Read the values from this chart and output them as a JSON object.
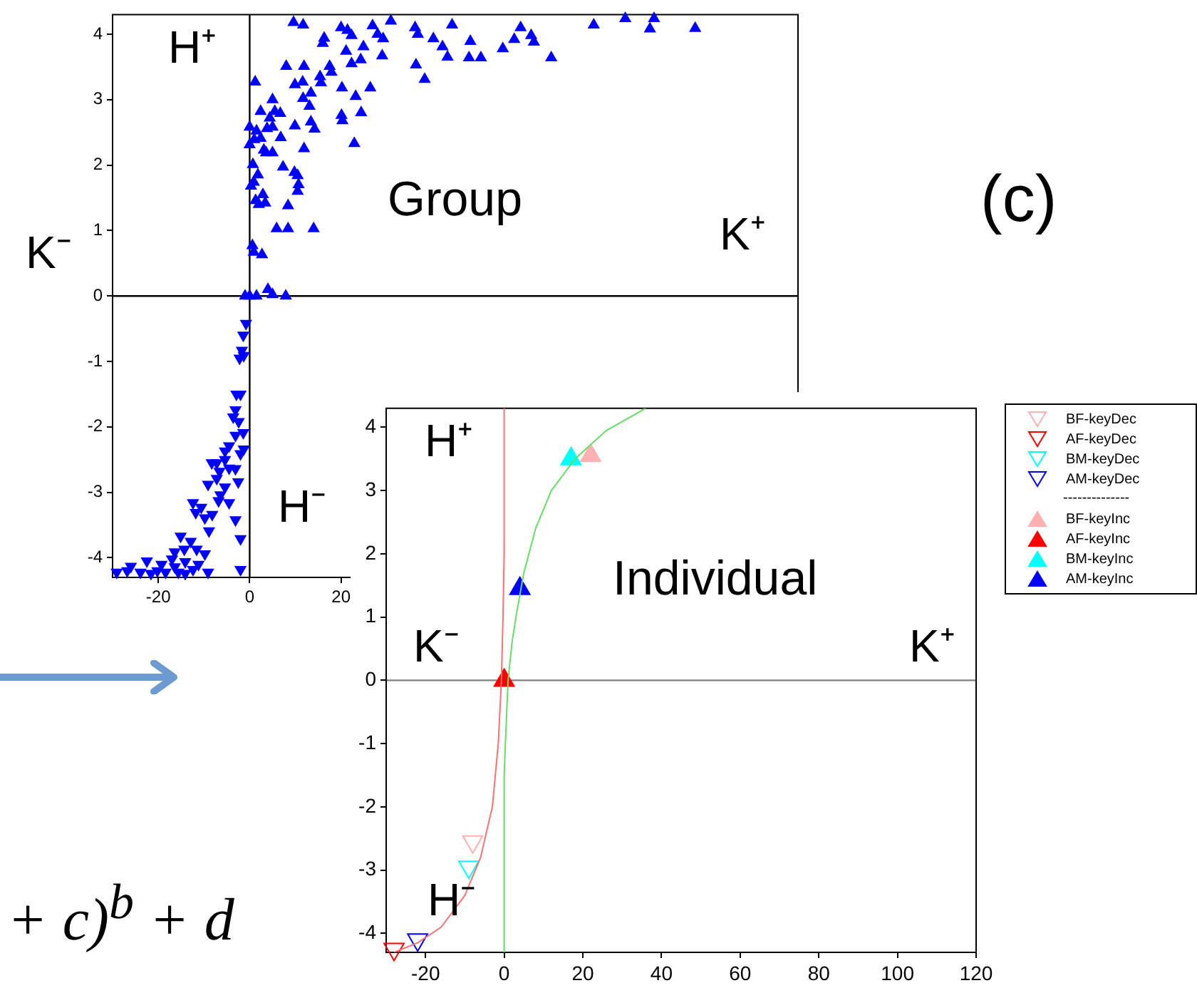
{
  "chart_data": [
    {
      "type": "scatter",
      "xlim": [
        -30,
        120
      ],
      "ylim": [
        -4.3,
        4.3
      ],
      "xticks": [
        -20,
        0,
        20
      ],
      "yticks": [
        -4,
        -3,
        -2,
        -1,
        0,
        1,
        2,
        3,
        4
      ],
      "grid": false,
      "marker": "triangle",
      "series": [
        {
          "color": "#0000ff",
          "x": [
            9.6,
            11.7,
            20,
            21.4,
            22.3,
            26.9,
            30.9,
            36.2,
            36.8,
            44.3,
            48.3,
            59.3,
            61.6,
            75.3,
            82.2,
            87.6,
            88.5,
            97.5,
            16.3,
            16,
            21.1,
            22.3,
            24.3,
            24.9,
            29,
            29.2,
            28,
            40.2,
            42.2,
            43.3,
            48,
            50.6,
            55.4,
            57.9,
            62.2,
            66,
            36.4,
            38.3,
            8,
            11.9,
            9.9,
            11.6,
            13.4,
            11.7,
            13.1,
            15.6,
            15.4,
            17.5,
            17.9,
            20.2,
            23.2,
            26.4,
            20.1,
            20.3,
            24.4,
            22.9,
            1.2,
            2.4,
            5,
            5.5,
            6.7,
            4.4,
            0,
            1.5,
            3.8,
            5,
            2.4,
            1,
            0,
            3.1,
            3.6,
            5,
            6.8,
            9.9,
            13.4,
            14.2,
            11.9,
            0.7,
            1.8,
            0.9,
            0.3,
            7.3,
            9.8,
            10.5,
            10.7,
            10.5,
            1.3,
            2.9,
            3.4,
            2,
            8.4,
            5.9,
            8.4,
            14,
            0.6,
            0.9,
            2.7,
            -1,
            4,
            5,
            7.9,
            1.5,
            0,
            -0.8,
            -1.4,
            -1.7,
            -2.2,
            -1.3,
            -2,
            -2.9,
            -3.1,
            -3.6,
            -2.4,
            -1.4,
            -3.1,
            -4.5,
            -5.4,
            -1.3,
            -2,
            -8.3,
            -7.2,
            -5.4,
            -6.6,
            -4.5,
            -3.1,
            -7.2,
            -9.1,
            -2.5,
            -5.4,
            -6.4,
            -4.5,
            -6.8,
            -12.4,
            -10.6,
            -11.8,
            -9.8,
            -8.2,
            -8.9,
            -3.1,
            -2,
            -2,
            -15.1,
            -12.9,
            -14.3,
            -16.4,
            -11.6,
            -9.8,
            -17,
            -14.1,
            -11.2,
            -19.3,
            -22.5,
            -26,
            -29.1,
            -26.8,
            -23.9,
            -21.6,
            -20.2,
            -18.4,
            -15.6,
            -14.1,
            -12.4,
            -9.1,
            -16.4
          ],
          "values": [
            4.18,
            4.14,
            4.1,
            4.06,
            3.98,
            4.13,
            4.2,
            4.1,
            4,
            4.14,
            3.89,
            4.1,
            3.98,
            4.14,
            4.24,
            4.08,
            4.24,
            4.09,
            3.94,
            3.86,
            3.74,
            3.55,
            3.61,
            3.81,
            3.67,
            3.93,
            4,
            3.93,
            3.81,
            3.65,
            3.64,
            3.64,
            3.78,
            3.92,
            3.88,
            3.64,
            3.53,
            3.31,
            3.51,
            3.51,
            3.23,
            3.27,
            3.1,
            3.02,
            2.9,
            3.26,
            3.35,
            3.51,
            3.42,
            3.18,
            3.05,
            3.18,
            2.76,
            2.68,
            2.8,
            2.33,
            3.27,
            2.82,
            3,
            2.82,
            2.79,
            2.72,
            2.58,
            2.52,
            2.56,
            2.58,
            2.41,
            2.39,
            2.31,
            2.23,
            2.19,
            2.19,
            2.42,
            2.6,
            2.66,
            2.55,
            2.25,
            2.01,
            1.85,
            1.74,
            1.68,
            1.97,
            1.89,
            1.84,
            1.7,
            1.6,
            1.46,
            1.55,
            1.42,
            1.4,
            1.38,
            1.03,
            1.03,
            1.03,
            0.77,
            0.67,
            0.63,
            0,
            0.1,
            0.02,
            0,
            0,
            0,
            -0.42,
            -0.6,
            -0.83,
            -0.95,
            -0.91,
            -1.5,
            -1.5,
            -1.74,
            -1.85,
            -1.92,
            -2.09,
            -2.13,
            -2.29,
            -2.37,
            -2.34,
            -2.41,
            -2.55,
            -2.55,
            -2.5,
            -2.68,
            -2.63,
            -2.64,
            -2.79,
            -2.88,
            -2.84,
            -2.92,
            -3.04,
            -3.16,
            -3.13,
            -3.16,
            -3.23,
            -3.31,
            -3.39,
            -3.34,
            -3.59,
            -3.42,
            -3.71,
            -4.18,
            -3.67,
            -3.75,
            -3.87,
            -3.91,
            -3.87,
            -3.94,
            -4.02,
            -4.06,
            -4.1,
            -4.1,
            -4.05,
            -4.13,
            -4.22,
            -4.2,
            -4.22,
            -4.24,
            -4.2,
            -4.22,
            -4.22,
            -4.24,
            -4.18,
            -4.22,
            -4.14
          ]
        }
      ],
      "ref_lines": [
        {
          "axis": "x",
          "value": 0,
          "color": "#000000"
        },
        {
          "axis": "y",
          "value": 0,
          "color": "#000000"
        }
      ],
      "annotations": [
        "H⁺",
        "K⁻",
        "Group",
        "K⁺",
        "H⁻",
        "(c)"
      ]
    },
    {
      "type": "scatter",
      "xlim": [
        -30,
        120
      ],
      "ylim": [
        -4.3,
        4.3
      ],
      "xticks": [
        -20,
        0,
        20,
        40,
        60,
        80,
        100,
        120
      ],
      "yticks": [
        -4,
        -3,
        -2,
        -1,
        0,
        1,
        2,
        3,
        4
      ],
      "grid": false,
      "marker": "triangle",
      "legend": "right",
      "series": [
        {
          "type": "line",
          "marker": "none",
          "color": "#ff7070",
          "x": [
            0,
            0,
            -0.3,
            -0.7,
            -1.5,
            -3,
            -6,
            -10,
            -16,
            -22,
            -28
          ],
          "values": [
            4.3,
            2,
            1,
            0,
            -1,
            -2,
            -2.8,
            -3.4,
            -3.9,
            -4.15,
            -4.3
          ]
        },
        {
          "type": "line",
          "marker": "none",
          "color": "#66dd66",
          "x": [
            0,
            0,
            0.3,
            1,
            2,
            3,
            5,
            8,
            12,
            18,
            26,
            36
          ],
          "values": [
            -4.3,
            -1.5,
            -1,
            0,
            0.6,
            1,
            1.7,
            2.4,
            3,
            3.5,
            3.95,
            4.3
          ]
        },
        {
          "name": "BF-keyDec",
          "color": "#ffb0b0",
          "x": [
            -8
          ],
          "values": [
            -2.55
          ]
        },
        {
          "name": "AF-keyDec",
          "color": "#ff0000",
          "x": [
            -28
          ],
          "values": [
            -4.25
          ]
        },
        {
          "name": "BM-keyDec",
          "color": "#00ffff",
          "x": [
            -9
          ],
          "values": [
            -2.95
          ]
        },
        {
          "name": "AM-keyDec",
          "color": "#0000ff",
          "x": [
            -22
          ],
          "values": [
            -4.1
          ]
        },
        {
          "name": "BF-keyInc",
          "color": "#ffb0b0",
          "x": [
            22
          ],
          "values": [
            3.55
          ]
        },
        {
          "name": "AF-keyInc",
          "color": "#ff0000",
          "x": [
            0
          ],
          "values": [
            0
          ]
        },
        {
          "name": "BM-keyInc",
          "color": "#00ffff",
          "x": [
            17
          ],
          "values": [
            3.5
          ]
        },
        {
          "name": "AM-keyInc",
          "color": "#0000ff",
          "x": [
            4
          ],
          "values": [
            1.45
          ]
        }
      ],
      "ref_lines": [
        {
          "axis": "y",
          "value": 0,
          "color": "#808080"
        }
      ],
      "annotations": [
        "H⁺",
        "K⁻",
        "Individual",
        "K⁺",
        "H⁻",
        "+ c)$^{b}$ + d",
        "--------------"
      ]
    }
  ]
}
